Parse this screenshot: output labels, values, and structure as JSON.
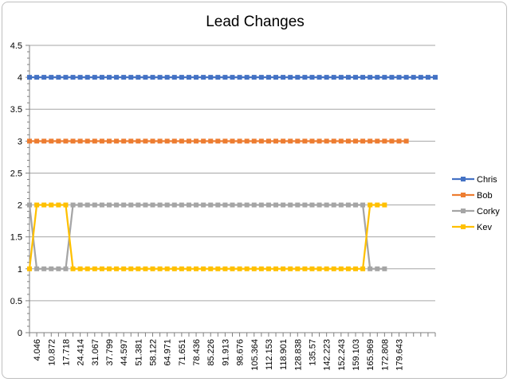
{
  "chart_data": {
    "type": "line",
    "title": "Lead Changes",
    "xlabel": "",
    "ylabel": "",
    "ylim": [
      0,
      4.5
    ],
    "yticks": [
      "0",
      "0.5",
      "1",
      "1.5",
      "2",
      "2.5",
      "3",
      "3.5",
      "4",
      "4.5"
    ],
    "grid": true,
    "legend": "right",
    "categories": [
      "4.046",
      "10.872",
      "17.718",
      "24.414",
      "31.067",
      "37.799",
      "44.597",
      "51.381",
      "58.122",
      "64.971",
      "71.651",
      "78.436",
      "85.226",
      "91.913",
      "98.676",
      "105.364",
      "112.153",
      "118.901",
      "128.838",
      "135.57",
      "142.223",
      "152.243",
      "159.103",
      "165.969",
      "172.808",
      "179.643"
    ],
    "x_point_count": 57,
    "series": [
      {
        "name": "Chris",
        "color": "#4472C4",
        "points": 57,
        "values": [
          {
            "from": 0,
            "to": 56,
            "value": 4
          }
        ]
      },
      {
        "name": "Bob",
        "color": "#ED7D31",
        "points": 53,
        "values": [
          {
            "from": 0,
            "to": 52,
            "value": 3
          }
        ]
      },
      {
        "name": "Corky",
        "color": "#A5A5A5",
        "points": 50,
        "values": [
          {
            "from": 0,
            "to": 0,
            "value": 2
          },
          {
            "from": 1,
            "to": 5,
            "value": 1
          },
          {
            "from": 6,
            "to": 46,
            "value": 2
          },
          {
            "from": 47,
            "to": 49,
            "value": 1
          }
        ]
      },
      {
        "name": "Kev",
        "color": "#FFC000",
        "points": 50,
        "values": [
          {
            "from": 0,
            "to": 0,
            "value": 1
          },
          {
            "from": 1,
            "to": 5,
            "value": 2
          },
          {
            "from": 6,
            "to": 46,
            "value": 1
          },
          {
            "from": 47,
            "to": 49,
            "value": 2
          }
        ]
      }
    ]
  }
}
